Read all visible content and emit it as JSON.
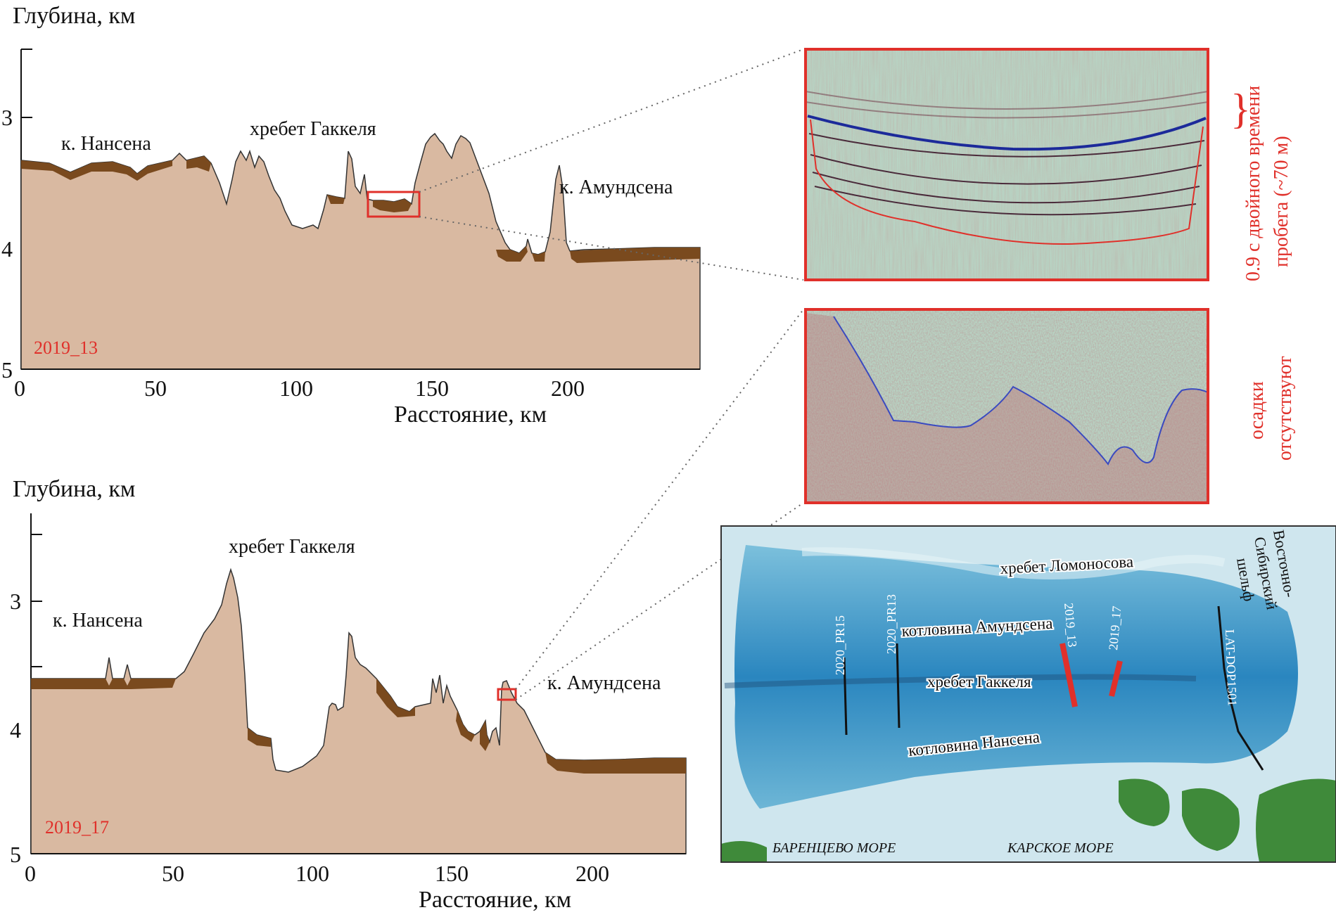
{
  "top_profile": {
    "ylabel": "Глубина, км",
    "xlabel": "Расстояние, км",
    "id_label": "2019_13",
    "y_ticks": [
      "3",
      "4",
      "5"
    ],
    "x_ticks": [
      "0",
      "50",
      "100",
      "150",
      "200"
    ],
    "annotations": {
      "nansen": "к. Нансена",
      "gakkel": "хребет Гаккеля",
      "amundsen": "к. Амундсена"
    }
  },
  "bottom_profile": {
    "ylabel": "Глубина, км",
    "xlabel": "Расстояние, км",
    "id_label": "2019_17",
    "y_ticks": [
      "3",
      "4",
      "5"
    ],
    "x_ticks": [
      "0",
      "50",
      "100",
      "150",
      "200"
    ],
    "annotations": {
      "nansen": "к. Нансена",
      "gakkel": "хребет Гаккеля",
      "amundsen": "к. Амундсена"
    }
  },
  "seismic_top": {
    "side_label_line1": "0.9 с двойного времени",
    "side_label_line2": "пробега (~70 м)"
  },
  "seismic_bottom": {
    "side_label_line1": "осадки",
    "side_label_line2": "отсутствуют"
  },
  "map": {
    "labels": {
      "lomonosov": "хребет Ломоносова",
      "amundsen_basin": "котловина Амундсена",
      "gakkel": "хребет Гаккеля",
      "nansen_basin": "котловина Нансена",
      "east_siberian_1": "Восточно-",
      "east_siberian_2": "Сибирский",
      "east_siberian_3": "шельф",
      "barents": "БАРЕНЦЕВО МОРЕ",
      "kara": "КАРСКОЕ МОРЕ",
      "pr15": "2020_PR15",
      "pr13": "2020_PR13",
      "l2019_13": "2019_13",
      "l2019_17": "2019_17",
      "latdop": "LAT-DOP1501"
    }
  },
  "colors": {
    "crust": "#d9b9a1",
    "sediment": "#7a4a1e",
    "highlight": "#e0302a",
    "seismic_bg": "#b8d4c4",
    "map_deep": "#2f8fc4",
    "land": "#3f8a3a"
  }
}
